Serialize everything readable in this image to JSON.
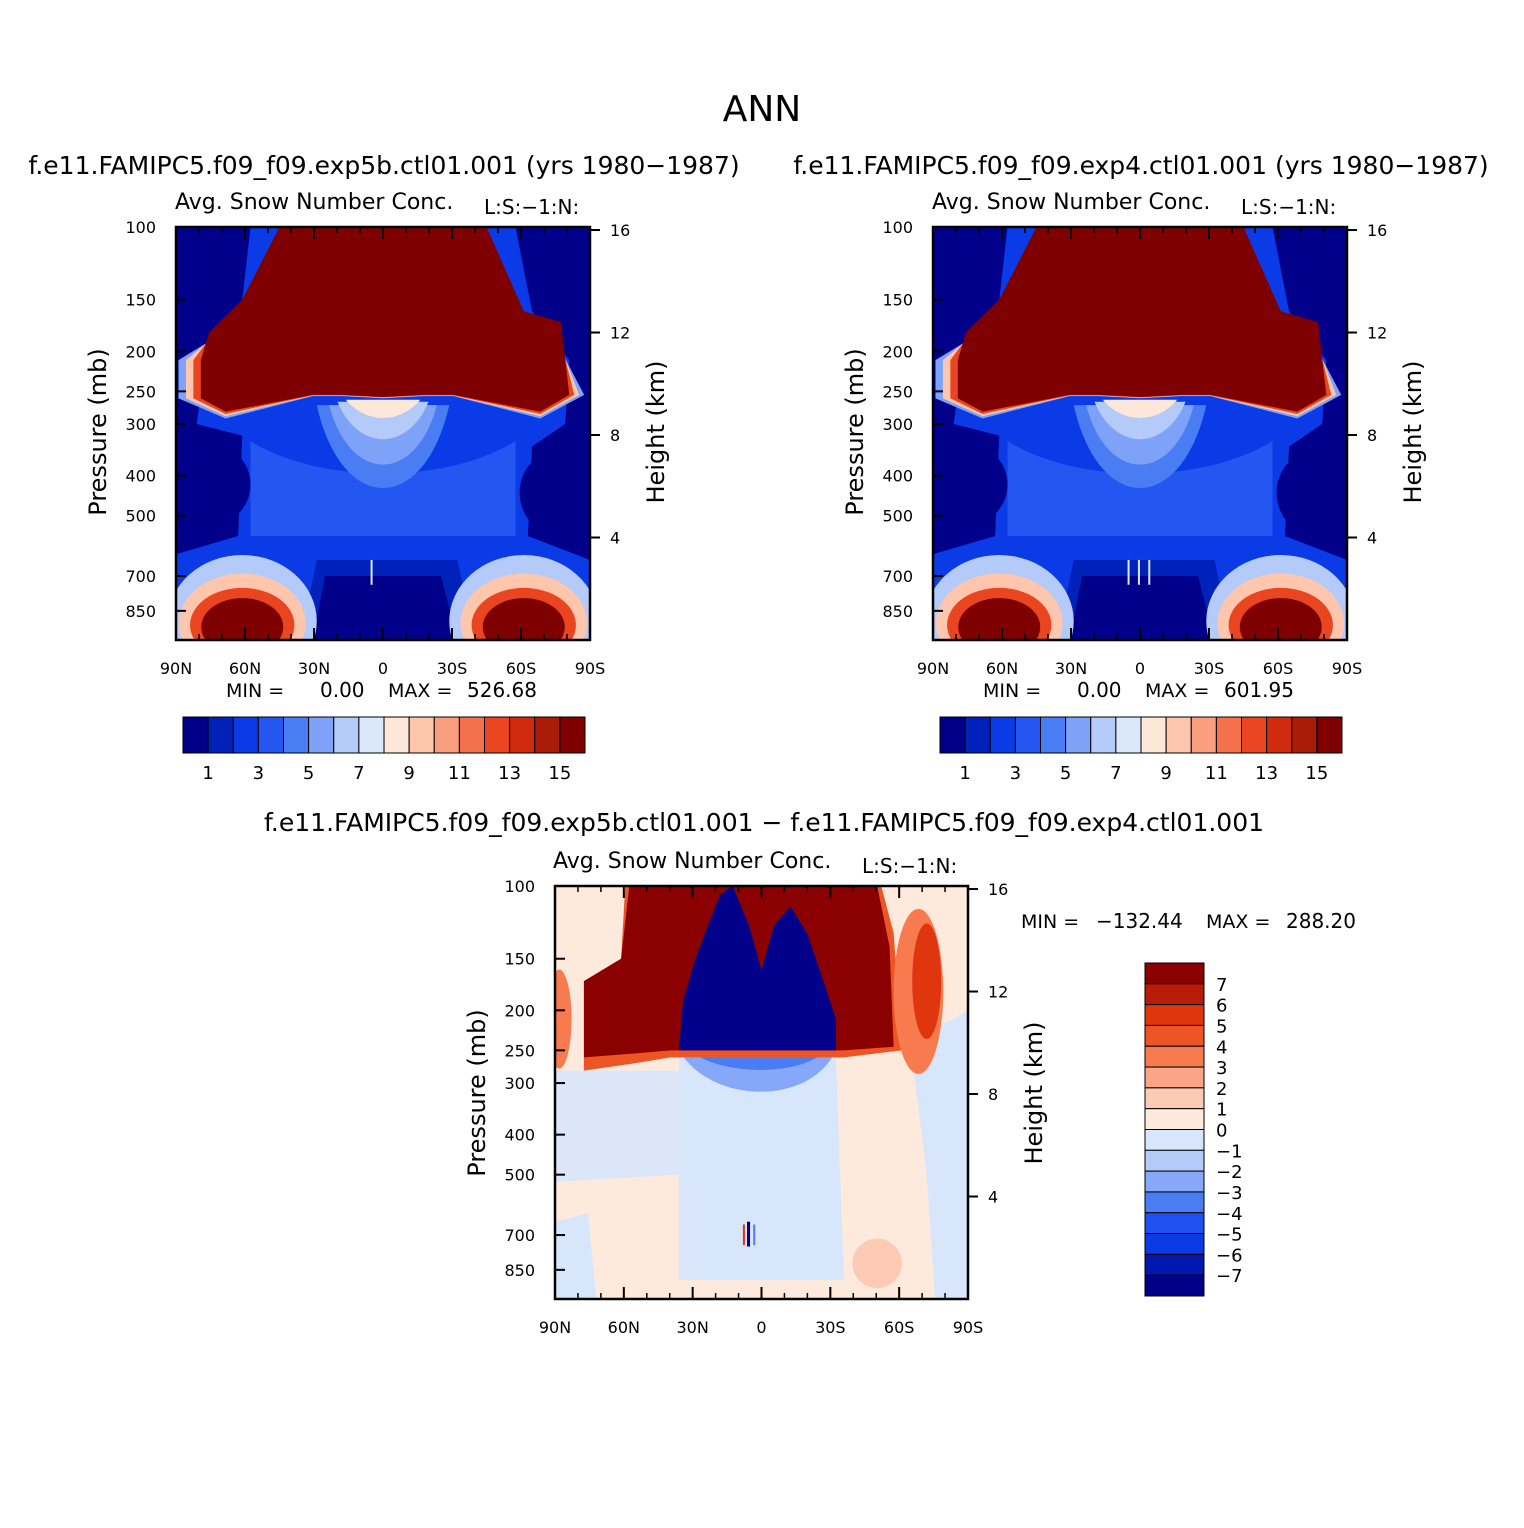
{
  "page_title": "ANN",
  "colors": {
    "blue_red_14": [
      "#00008b",
      "#0022bb",
      "#0a3be6",
      "#2456f2",
      "#4a7cf4",
      "#7ea2f7",
      "#b4caf9",
      "#dbe8fc",
      "#fde7d9",
      "#fdc6ad",
      "#fb9e7f",
      "#f5714b",
      "#e84520",
      "#d02b0c",
      "#a81c08",
      "#7e0000"
    ],
    "diff_levels_colors": [
      "#00008b",
      "#0018b0",
      "#0a3be6",
      "#2050f0",
      "#4a7cf4",
      "#86a8f8",
      "#b4caf9",
      "#d8e6fc",
      "#fdeadc",
      "#fdcbb4",
      "#fba488",
      "#f87a4f",
      "#ee5524",
      "#e03610",
      "#b81c08",
      "#8b0000"
    ]
  },
  "chart_data": [
    {
      "type": "heatmap",
      "panel_title": "f.e11.FAMIPC5.f09_f09.exp5b.ctl01.001 (yrs 1980−1987)",
      "title": "Avg. Snow Number Conc.",
      "units_label": "L:S:−1:N:",
      "xlabel": "",
      "ylabel": "Pressure (mb)",
      "ylabel_right": "Height (km)",
      "x_ticks": [
        "90N",
        "60N",
        "30N",
        "0",
        "30S",
        "60S",
        "90S"
      ],
      "y_ticks": [
        "100",
        "150",
        "200",
        "250",
        "300",
        "400",
        "500",
        "700",
        "850"
      ],
      "y_right_ticks": [
        "16",
        "12",
        "8",
        "4"
      ],
      "min_label": "MIN =",
      "min_value": "0.00",
      "max_label": "MAX =",
      "max_value": "526.68",
      "colorbar_labels": [
        "1",
        "3",
        "5",
        "7",
        "9",
        "11",
        "13",
        "15"
      ],
      "levels": [
        1,
        2,
        3,
        4,
        5,
        6,
        7,
        8,
        9,
        10,
        11,
        12,
        13,
        14,
        15
      ],
      "ylim": [
        100,
        1000
      ],
      "xlim": [
        "90N",
        "90S"
      ]
    },
    {
      "type": "heatmap",
      "panel_title": "f.e11.FAMIPC5.f09_f09.exp4.ctl01.001 (yrs 1980−1987)",
      "title": "Avg. Snow Number Conc.",
      "units_label": "L:S:−1:N:",
      "xlabel": "",
      "ylabel": "Pressure (mb)",
      "ylabel_right": "Height (km)",
      "x_ticks": [
        "90N",
        "60N",
        "30N",
        "0",
        "30S",
        "60S",
        "90S"
      ],
      "y_ticks": [
        "100",
        "150",
        "200",
        "250",
        "300",
        "400",
        "500",
        "700",
        "850"
      ],
      "y_right_ticks": [
        "16",
        "12",
        "8",
        "4"
      ],
      "min_label": "MIN =",
      "min_value": "0.00",
      "max_label": "MAX =",
      "max_value": "601.95",
      "colorbar_labels": [
        "1",
        "3",
        "5",
        "7",
        "9",
        "11",
        "13",
        "15"
      ],
      "levels": [
        1,
        2,
        3,
        4,
        5,
        6,
        7,
        8,
        9,
        10,
        11,
        12,
        13,
        14,
        15
      ],
      "ylim": [
        100,
        1000
      ],
      "xlim": [
        "90N",
        "90S"
      ]
    },
    {
      "type": "heatmap",
      "panel_title": "f.e11.FAMIPC5.f09_f09.exp5b.ctl01.001 − f.e11.FAMIPC5.f09_f09.exp4.ctl01.001",
      "title": "Avg. Snow Number Conc.",
      "units_label": "L:S:−1:N:",
      "xlabel": "",
      "ylabel": "Pressure (mb)",
      "ylabel_right": "Height (km)",
      "x_ticks": [
        "90N",
        "60N",
        "30N",
        "0",
        "30S",
        "60S",
        "90S"
      ],
      "y_ticks": [
        "100",
        "150",
        "200",
        "250",
        "300",
        "400",
        "500",
        "700",
        "850"
      ],
      "y_right_ticks": [
        "16",
        "12",
        "8",
        "4"
      ],
      "min_label": "MIN =",
      "min_value": "−132.44",
      "max_label": "MAX =",
      "max_value": "288.20",
      "colorbar_labels": [
        "7",
        "6",
        "5",
        "4",
        "3",
        "2",
        "1",
        "0",
        "−1",
        "−2",
        "−3",
        "−4",
        "−5",
        "−6",
        "−7"
      ],
      "levels": [
        -7,
        -6,
        -5,
        -4,
        -3,
        -2,
        -1,
        0,
        1,
        2,
        3,
        4,
        5,
        6,
        7
      ],
      "ylim": [
        100,
        1000
      ],
      "xlim": [
        "90N",
        "90S"
      ]
    }
  ]
}
